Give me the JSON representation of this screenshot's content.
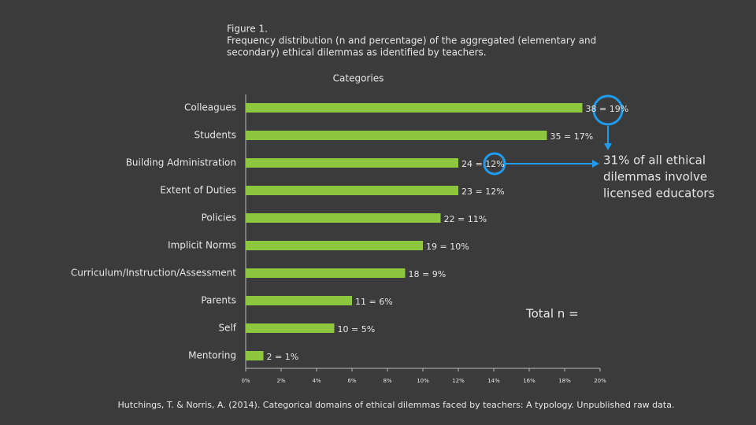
{
  "chart_data": {
    "type": "barh",
    "title": [
      "Figure 1.",
      "Frequency distribution (n and percentage) of the aggregated (elementary and",
      "secondary) ethical dilemmas as identified by teachers."
    ],
    "axis_title": "Categories",
    "categories": [
      "Colleagues",
      "Students",
      "Building Administration",
      "Extent of Duties",
      "Policies",
      "Implicit Norms",
      "Curriculum/Instruction/Assessment",
      "Parents",
      "Self",
      "Mentoring"
    ],
    "values": [
      19,
      17,
      12,
      12,
      11,
      10,
      9,
      6,
      5,
      1
    ],
    "value_labels": [
      "38 = 19%",
      "35 = 17%",
      "24 = 12%",
      "23 = 12%",
      "22 = 11%",
      "19 = 10%",
      "18 = 9%",
      "11 = 6%",
      "10 = 5%",
      "2 = 1%"
    ],
    "color": "#8dc63f",
    "xlim": [
      0,
      20
    ],
    "xticks": [
      {
        "value": 0,
        "label": "0%"
      },
      {
        "value": 2,
        "label": "2%"
      },
      {
        "value": 4,
        "label": "4%"
      },
      {
        "value": 6,
        "label": "6%"
      },
      {
        "value": 8,
        "label": "8%"
      },
      {
        "value": 10,
        "label": "10%"
      },
      {
        "value": 12,
        "label": "12%"
      },
      {
        "value": 14,
        "label": "14%"
      },
      {
        "value": 16,
        "label": "16%"
      },
      {
        "value": 18,
        "label": "18%"
      },
      {
        "value": 20,
        "label": "20%"
      }
    ],
    "annotation": [
      "31% of all ethical",
      "dilemmas involve",
      "licensed educators"
    ],
    "total_label": "Total n =",
    "source": "Hutchings, T. & Norris, A. (2014). Categorical domains of ethical dilemmas faced by teachers: A typology. Unpublished raw data."
  }
}
